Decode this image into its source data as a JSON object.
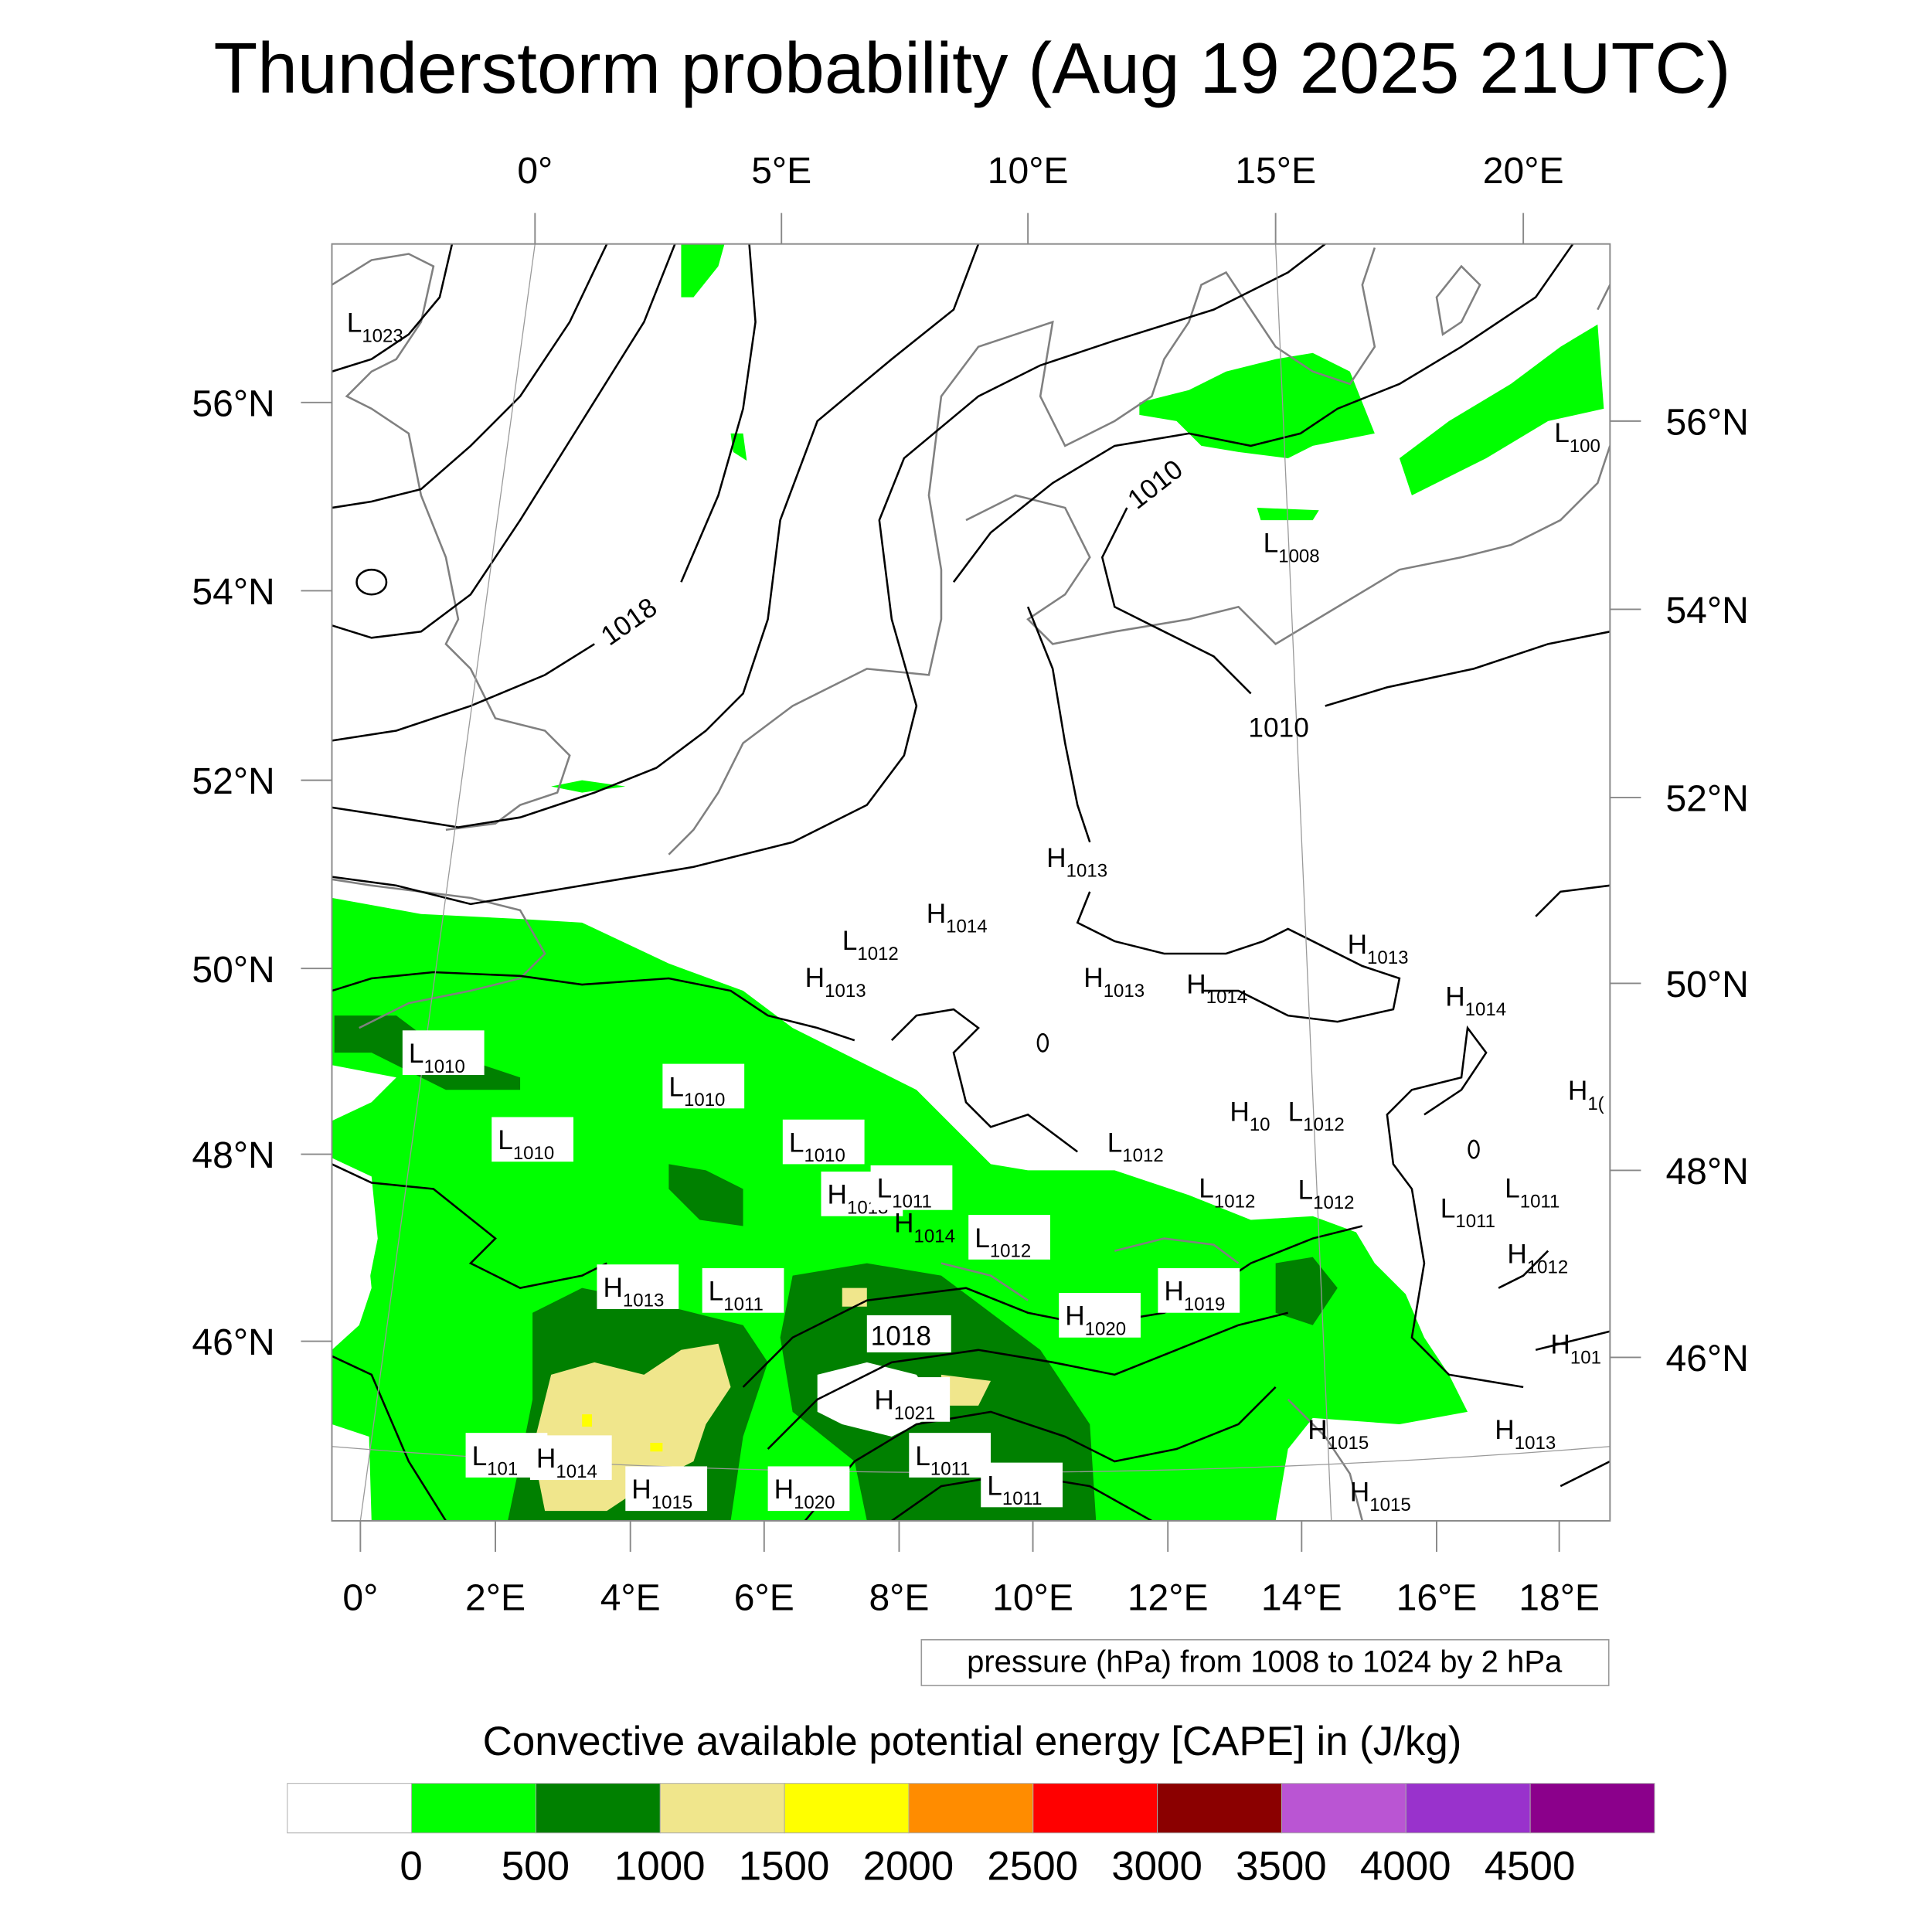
{
  "title": "Thunderstorm probability (Aug 19 2025 21UTC)",
  "axes": {
    "top": [
      "0°",
      "5°E",
      "10°E",
      "15°E",
      "20°E"
    ],
    "left": [
      "56°N",
      "54°N",
      "52°N",
      "50°N",
      "48°N",
      "46°N"
    ],
    "right": [
      "56°N",
      "54°N",
      "52°N",
      "50°N",
      "48°N",
      "46°N"
    ],
    "bottom": [
      "0°",
      "2°E",
      "4°E",
      "6°E",
      "8°E",
      "10°E",
      "12°E",
      "14°E",
      "16°E",
      "18°E"
    ]
  },
  "pressure_legend": "pressure (hPa) from 1008 to 1024 by 2 hPa",
  "colorbar": {
    "title": "Convective available potential energy [CAPE] in (J/kg)",
    "colors": [
      "#ffffff",
      "#00ff00",
      "#008000",
      "#f0e68c",
      "#ffff00",
      "#ff8c00",
      "#ff0000",
      "#8b0000",
      "#ba55d3",
      "#9932cc",
      "#8b008b"
    ],
    "labels": [
      "0",
      "500",
      "1000",
      "1500",
      "2000",
      "2500",
      "3000",
      "3500",
      "4000",
      "4500"
    ]
  },
  "contour_labels": [
    "1018",
    "1010",
    "1010"
  ],
  "pressure_centers": [
    {
      "type": "L",
      "value": "1023"
    },
    {
      "type": "L",
      "value": "100"
    },
    {
      "type": "L",
      "value": "1008"
    },
    {
      "type": "H",
      "value": "1013"
    },
    {
      "type": "H",
      "value": "1014"
    },
    {
      "type": "L",
      "value": "1012"
    },
    {
      "type": "H",
      "value": "1013"
    },
    {
      "type": "H",
      "value": "1013"
    },
    {
      "type": "H",
      "value": "1014"
    },
    {
      "type": "H",
      "value": "1013"
    },
    {
      "type": "H",
      "value": "1014"
    },
    {
      "type": "L",
      "value": "1010"
    },
    {
      "type": "L",
      "value": "1010"
    },
    {
      "type": "L",
      "value": "1010"
    },
    {
      "type": "L",
      "value": "1010"
    },
    {
      "type": "H",
      "value": "10"
    },
    {
      "type": "L",
      "value": "1012"
    },
    {
      "type": "H",
      "value": "1("
    },
    {
      "type": "L",
      "value": "1012"
    },
    {
      "type": "H",
      "value": "1013"
    },
    {
      "type": "L",
      "value": "1011"
    },
    {
      "type": "H",
      "value": "1014"
    },
    {
      "type": "L",
      "value": "1012"
    },
    {
      "type": "L",
      "value": "1012"
    },
    {
      "type": "L",
      "value": "1012"
    },
    {
      "type": "L",
      "value": "1011"
    },
    {
      "type": "L",
      "value": "1011"
    },
    {
      "type": "H",
      "value": "1012"
    },
    {
      "type": "H",
      "value": "1013"
    },
    {
      "type": "L",
      "value": "1011"
    },
    {
      "type": "H",
      "value": "1020"
    },
    {
      "type": "H",
      "value": "1019"
    },
    {
      "type": "H",
      "value": "101"
    },
    {
      "type": "H",
      "value": "1021"
    },
    {
      "type": "H",
      "value": "1015"
    },
    {
      "type": "H",
      "value": "1013"
    },
    {
      "type": "L",
      "value": "101"
    },
    {
      "type": "H",
      "value": "1014"
    },
    {
      "type": "H",
      "value": "1015"
    },
    {
      "type": "H",
      "value": "1020"
    },
    {
      "type": "L",
      "value": "1011"
    },
    {
      "type": "L",
      "value": "1011"
    },
    {
      "type": "H",
      "value": "1015"
    }
  ],
  "boxed_contour_label": "1018"
}
